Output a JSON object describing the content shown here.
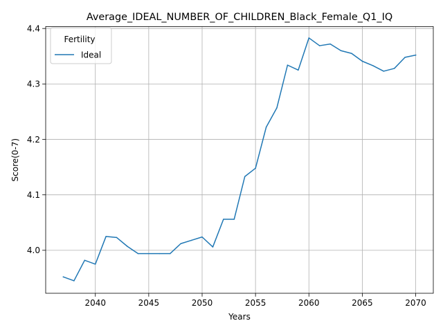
{
  "chart_data": {
    "type": "line",
    "title": "Average_IDEAL_NUMBER_OF_CHILDREN_Black_Female_Q1_IQ",
    "xlabel": "Years",
    "ylabel": "Score(0-7)",
    "xlim": [
      2035.35,
      2071.65
    ],
    "ylim": [
      3.9225,
      4.4035
    ],
    "xticks": [
      2040,
      2045,
      2050,
      2055,
      2060,
      2065,
      2070
    ],
    "yticks": [
      4.0,
      4.1,
      4.2,
      4.3,
      4.4
    ],
    "xtick_labels": [
      "2040",
      "2045",
      "2050",
      "2055",
      "2060",
      "2065",
      "2070"
    ],
    "ytick_labels": [
      "4.0",
      "4.1",
      "4.2",
      "4.3",
      "4.4"
    ],
    "grid": true,
    "legend": {
      "title": "Fertility",
      "location": "upper-left"
    },
    "series": [
      {
        "name": "Ideal",
        "color": "#1f77b4",
        "x": [
          2037,
          2038,
          2039,
          2040,
          2041,
          2042,
          2043,
          2044,
          2045,
          2046,
          2047,
          2048,
          2049,
          2050,
          2051,
          2052,
          2053,
          2054,
          2055,
          2056,
          2057,
          2058,
          2059,
          2060,
          2061,
          2062,
          2063,
          2064,
          2065,
          2066,
          2067,
          2068,
          2069,
          2070
        ],
        "y": [
          3.952,
          3.945,
          3.982,
          3.975,
          4.025,
          4.023,
          4.007,
          3.994,
          3.994,
          3.994,
          3.994,
          4.012,
          4.018,
          4.024,
          4.006,
          4.056,
          4.056,
          4.133,
          4.148,
          4.222,
          4.257,
          4.334,
          4.325,
          4.383,
          4.369,
          4.372,
          4.36,
          4.355,
          4.341,
          4.333,
          4.323,
          4.328,
          4.348,
          4.352
        ]
      }
    ]
  }
}
